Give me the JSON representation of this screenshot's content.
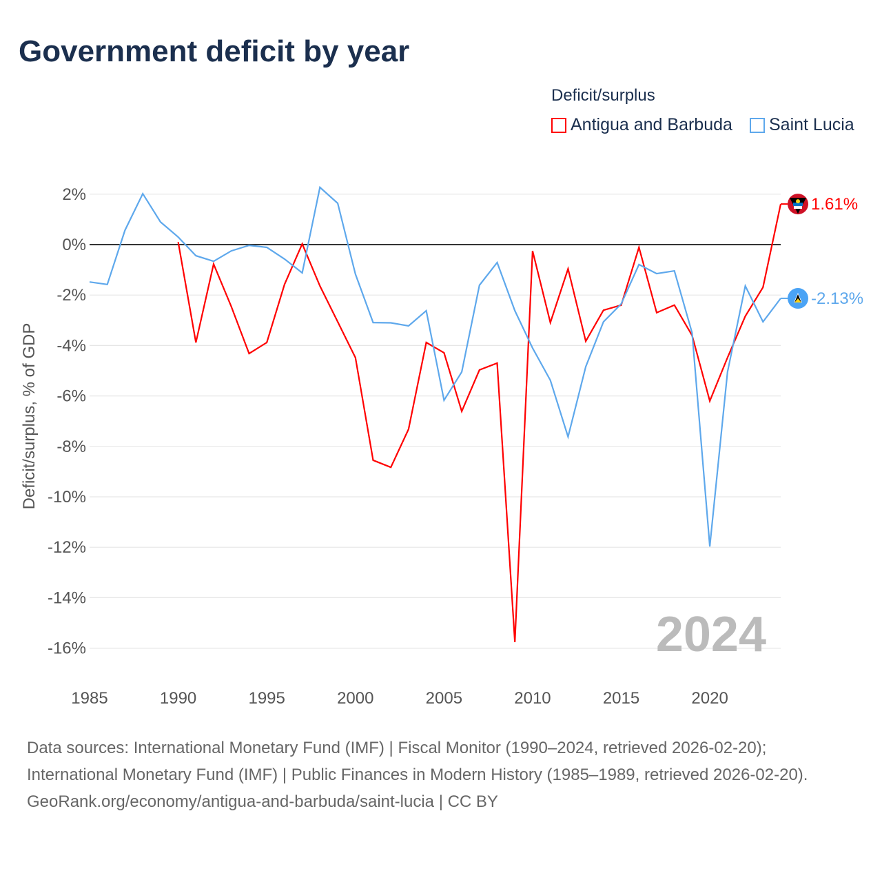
{
  "title": "Government deficit by year",
  "legend": {
    "title": "Deficit/surplus",
    "items": [
      {
        "label": "Antigua and Barbuda",
        "color": "#ff0000"
      },
      {
        "label": "Saint Lucia",
        "color": "#5ea8ec"
      }
    ]
  },
  "year_watermark": "2024",
  "end_labels": {
    "antigua": "1.61%",
    "saint_lucia": "-2.13%"
  },
  "source": {
    "line1": "Data sources: International Monetary Fund (IMF) | Fiscal Monitor (1990–2024, retrieved 2026-02-20); International Monetary Fund (IMF) | Public Finances in Modern History (1985–1989, retrieved 2026-02-20).",
    "line2": "GeoRank.org/economy/antigua-and-barbuda/saint-lucia | CC BY"
  },
  "chart_data": {
    "type": "line",
    "title": "Government deficit by year",
    "xlabel": "",
    "ylabel": "Deficit/surplus, % of GDP",
    "xlim": [
      1985,
      2024
    ],
    "ylim": [
      -17,
      2.5
    ],
    "x_ticks": [
      "1985",
      "1990",
      "1995",
      "2000",
      "2005",
      "2010",
      "2015",
      "2020"
    ],
    "y_ticks": [
      "2%",
      "0%",
      "-2%",
      "-4%",
      "-6%",
      "-8%",
      "-10%",
      "-12%",
      "-14%",
      "-16%"
    ],
    "y_tick_values": [
      2,
      0,
      -2,
      -4,
      -6,
      -8,
      -10,
      -12,
      -14,
      -16
    ],
    "grid": true,
    "legend_position": "top-right",
    "series": [
      {
        "name": "Antigua and Barbuda",
        "color": "#ff0000",
        "start_year": 1990,
        "values": [
          0.1,
          -3.88,
          -0.77,
          -2.46,
          -4.32,
          -3.88,
          -1.58,
          0.03,
          -1.64,
          -3.06,
          -4.48,
          -8.55,
          -8.83,
          -7.32,
          -3.88,
          -4.29,
          -6.61,
          -4.97,
          -4.7,
          -15.76,
          -0.25,
          -3.09,
          -0.96,
          -3.83,
          -2.6,
          -2.4,
          -0.11,
          -2.7,
          -2.4,
          -3.6,
          -6.2,
          -4.48,
          -2.84,
          -1.69,
          1.61
        ]
      },
      {
        "name": "Saint Lucia",
        "color": "#5ea8ec",
        "start_year": 1985,
        "values": [
          -1.48,
          -1.58,
          0.57,
          2.02,
          0.9,
          0.3,
          -0.44,
          -0.66,
          -0.25,
          -0.03,
          -0.11,
          -0.57,
          -1.12,
          2.27,
          1.64,
          -1.17,
          -3.09,
          -3.1,
          -3.22,
          -2.62,
          -6.17,
          -5.05,
          -1.61,
          -0.71,
          -2.62,
          -4.1,
          -5.38,
          -7.62,
          -4.84,
          -3.06,
          -2.35,
          -0.79,
          -1.15,
          -1.04,
          -3.5,
          -11.97,
          -5.05,
          -1.64,
          -3.06,
          -2.13
        ]
      }
    ]
  }
}
